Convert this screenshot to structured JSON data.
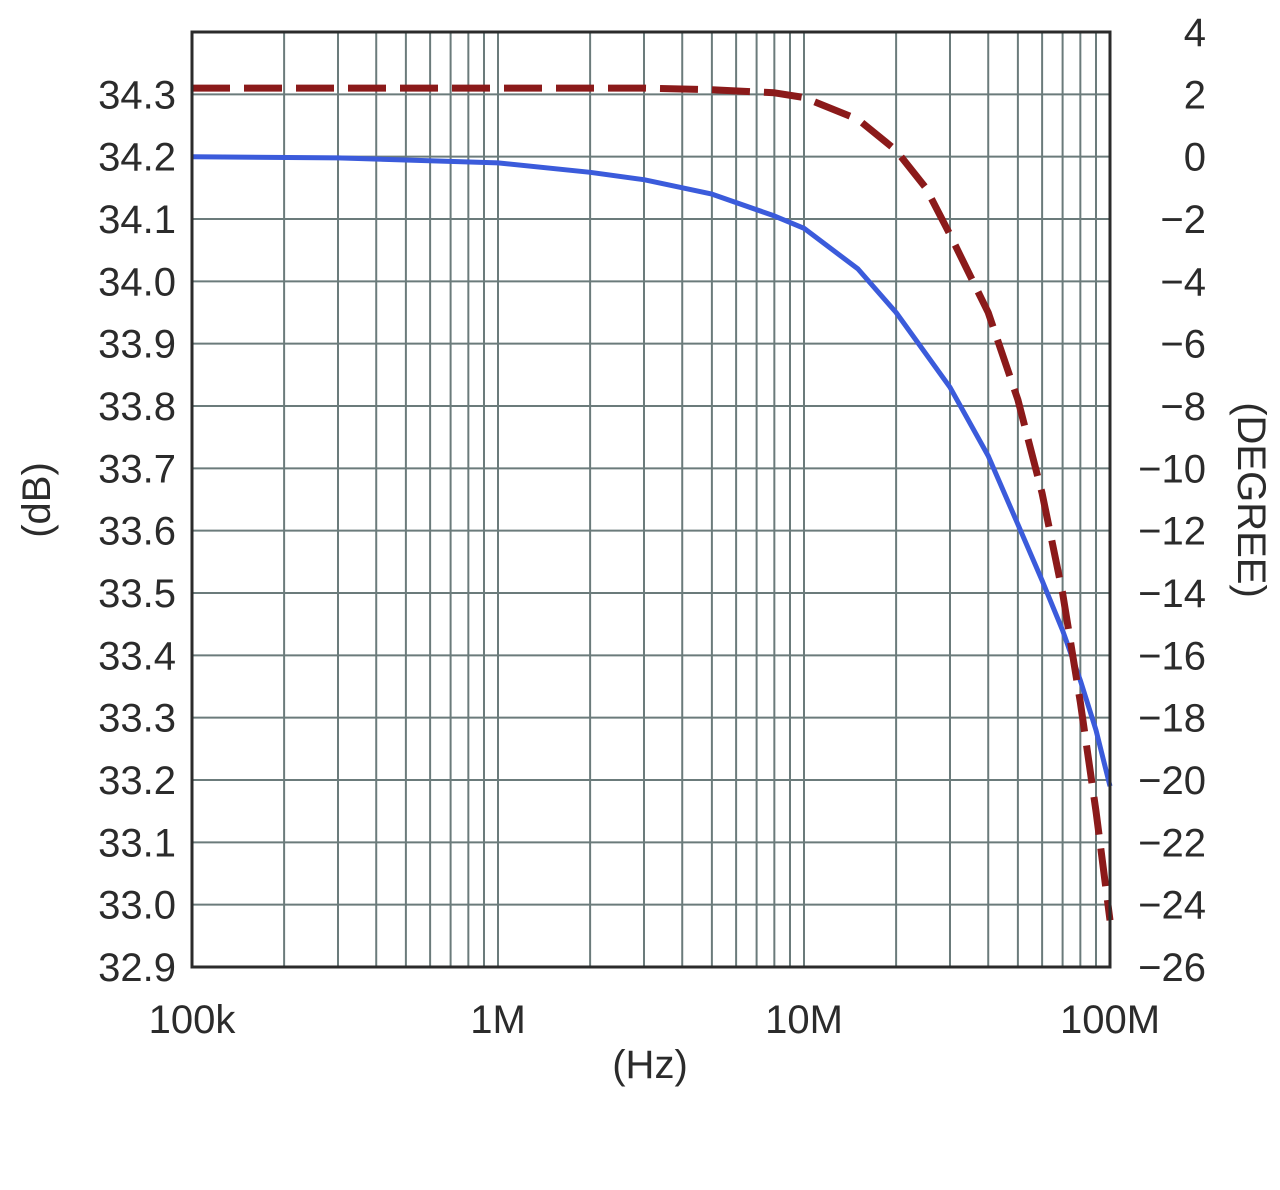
{
  "chart_data": {
    "type": "line",
    "title": "",
    "xlabel": "(Hz)",
    "ylabel_left": "(dB)",
    "ylabel_right": "(DEGREE)",
    "xscale": "log",
    "xlim": [
      100000,
      100000000
    ],
    "ylim_left": [
      32.9,
      34.4
    ],
    "ylim_right": [
      -26,
      4
    ],
    "grid": true,
    "x_tick_labels": [
      {
        "value": 100000,
        "label": "100k"
      },
      {
        "value": 1000000,
        "label": "1M"
      },
      {
        "value": 10000000,
        "label": "10M"
      },
      {
        "value": 100000000,
        "label": "100M"
      }
    ],
    "y_left_ticks": [
      {
        "value": 34.3,
        "label": "34.3"
      },
      {
        "value": 34.2,
        "label": "34.2"
      },
      {
        "value": 34.1,
        "label": "34.1"
      },
      {
        "value": 34.0,
        "label": "34.0"
      },
      {
        "value": 33.9,
        "label": "33.9"
      },
      {
        "value": 33.8,
        "label": "33.8"
      },
      {
        "value": 33.7,
        "label": "33.7"
      },
      {
        "value": 33.6,
        "label": "33.6"
      },
      {
        "value": 33.5,
        "label": "33.5"
      },
      {
        "value": 33.4,
        "label": "33.4"
      },
      {
        "value": 33.3,
        "label": "33.3"
      },
      {
        "value": 33.2,
        "label": "33.2"
      },
      {
        "value": 33.1,
        "label": "33.1"
      },
      {
        "value": 33.0,
        "label": "33.0"
      },
      {
        "value": 32.9,
        "label": "32.9"
      }
    ],
    "y_right_ticks": [
      {
        "value": 4,
        "label": "4"
      },
      {
        "value": 2,
        "label": "2"
      },
      {
        "value": 0,
        "label": "0"
      },
      {
        "value": -2,
        "label": "−2"
      },
      {
        "value": -4,
        "label": "−4"
      },
      {
        "value": -6,
        "label": "−6"
      },
      {
        "value": -8,
        "label": "−8"
      },
      {
        "value": -10,
        "label": "−10"
      },
      {
        "value": -12,
        "label": "−12"
      },
      {
        "value": -14,
        "label": "−14"
      },
      {
        "value": -16,
        "label": "−16"
      },
      {
        "value": -18,
        "label": "−18"
      },
      {
        "value": -20,
        "label": "−20"
      },
      {
        "value": -22,
        "label": "−22"
      },
      {
        "value": -24,
        "label": "−24"
      },
      {
        "value": -26,
        "label": "−26"
      }
    ],
    "series": [
      {
        "axis": "left",
        "color": "#3b5bdb",
        "style": "solid",
        "points": [
          [
            100000,
            34.2
          ],
          [
            300000,
            34.198
          ],
          [
            1000000,
            34.19
          ],
          [
            2000000,
            34.175
          ],
          [
            3000000,
            34.163
          ],
          [
            5000000,
            34.14
          ],
          [
            8000000,
            34.105
          ],
          [
            10000000,
            34.085
          ],
          [
            15000000,
            34.02
          ],
          [
            20000000,
            33.95
          ],
          [
            30000000,
            33.83
          ],
          [
            40000000,
            33.72
          ],
          [
            50000000,
            33.61
          ],
          [
            60000000,
            33.52
          ],
          [
            70000000,
            33.44
          ],
          [
            80000000,
            33.36
          ],
          [
            90000000,
            33.28
          ],
          [
            100000000,
            33.19
          ]
        ]
      },
      {
        "axis": "right",
        "color": "#8b1a1a",
        "style": "dashed",
        "points": [
          [
            100000,
            2.2
          ],
          [
            1000000,
            2.2
          ],
          [
            3000000,
            2.2
          ],
          [
            5000000,
            2.15
          ],
          [
            8000000,
            2.05
          ],
          [
            10000000,
            1.9
          ],
          [
            15000000,
            1.2
          ],
          [
            20000000,
            0.2
          ],
          [
            25000000,
            -1.0
          ],
          [
            30000000,
            -2.5
          ],
          [
            40000000,
            -5.0
          ],
          [
            50000000,
            -7.8
          ],
          [
            60000000,
            -10.8
          ],
          [
            70000000,
            -14.0
          ],
          [
            80000000,
            -17.5
          ],
          [
            90000000,
            -21.0
          ],
          [
            100000000,
            -24.5
          ]
        ]
      }
    ]
  }
}
